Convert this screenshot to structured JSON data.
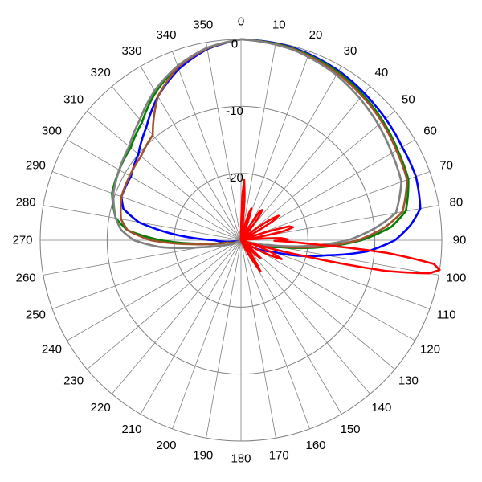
{
  "chart_data": {
    "type": "polar-line",
    "title": "",
    "angle_unit": "deg",
    "angle_direction": "clockwise",
    "zero_at": "top",
    "angle_tick_labels": [
      "0",
      "10",
      "20",
      "30",
      "40",
      "50",
      "60",
      "70",
      "80",
      "90",
      "100",
      "110",
      "120",
      "130",
      "140",
      "150",
      "160",
      "170",
      "180",
      "190",
      "200",
      "210",
      "220",
      "230",
      "240",
      "250",
      "260",
      "270",
      "280",
      "290",
      "300",
      "310",
      "320",
      "330",
      "340",
      "350"
    ],
    "radial_range_db": [
      -30,
      0
    ],
    "radial_tick_values": [
      0,
      -10,
      -20
    ],
    "radial_tick_labels": [
      "0",
      "-10",
      "-20"
    ],
    "grid": true,
    "legend": "none",
    "series": [
      {
        "color": "#0000ff",
        "points": [
          [
            0,
            0
          ],
          [
            15,
            -0.2
          ],
          [
            30,
            -0.8
          ],
          [
            45,
            -1.6
          ],
          [
            60,
            -2.2
          ],
          [
            70,
            -2.2
          ],
          [
            80,
            -2.8
          ],
          [
            85,
            -4.6
          ],
          [
            90,
            -7
          ],
          [
            95,
            -11
          ],
          [
            100,
            -17
          ],
          [
            110,
            -25
          ],
          [
            125,
            -29
          ],
          [
            180,
            -30
          ],
          [
            240,
            -30
          ],
          [
            260,
            -29
          ],
          [
            270,
            -26
          ],
          [
            275,
            -20
          ],
          [
            280,
            -14.5
          ],
          [
            285,
            -11.8
          ],
          [
            290,
            -11
          ],
          [
            300,
            -11
          ],
          [
            310,
            -10
          ],
          [
            320,
            -8
          ],
          [
            330,
            -5.2
          ],
          [
            340,
            -2.8
          ],
          [
            350,
            -1
          ],
          [
            360,
            0
          ]
        ]
      },
      {
        "color": "#008000",
        "points": [
          [
            0,
            0
          ],
          [
            15,
            -0.3
          ],
          [
            30,
            -1
          ],
          [
            45,
            -2
          ],
          [
            60,
            -3
          ],
          [
            70,
            -3.4
          ],
          [
            80,
            -5
          ],
          [
            85,
            -7.5
          ],
          [
            90,
            -12
          ],
          [
            95,
            -18
          ],
          [
            100,
            -24
          ],
          [
            110,
            -29
          ],
          [
            180,
            -30
          ],
          [
            240,
            -30
          ],
          [
            260,
            -28
          ],
          [
            265,
            -24
          ],
          [
            270,
            -18
          ],
          [
            275,
            -13
          ],
          [
            280,
            -11
          ],
          [
            290,
            -9.5
          ],
          [
            300,
            -9
          ],
          [
            310,
            -8.5
          ],
          [
            320,
            -7
          ],
          [
            330,
            -4.5
          ],
          [
            340,
            -2.4
          ],
          [
            350,
            -0.9
          ],
          [
            360,
            0
          ]
        ]
      },
      {
        "color": "#a0522d",
        "points": [
          [
            0,
            0
          ],
          [
            15,
            -0.4
          ],
          [
            30,
            -1.2
          ],
          [
            45,
            -2.2
          ],
          [
            60,
            -3.2
          ],
          [
            70,
            -3.6
          ],
          [
            80,
            -5.5
          ],
          [
            85,
            -8.5
          ],
          [
            90,
            -12.5
          ],
          [
            95,
            -18.5
          ],
          [
            100,
            -25
          ],
          [
            110,
            -29
          ],
          [
            180,
            -30
          ],
          [
            240,
            -30
          ],
          [
            260,
            -28
          ],
          [
            265,
            -23
          ],
          [
            270,
            -16.5
          ],
          [
            275,
            -13
          ],
          [
            280,
            -11.8
          ],
          [
            290,
            -11
          ],
          [
            300,
            -10.8
          ],
          [
            310,
            -10.5
          ],
          [
            320,
            -9.5
          ],
          [
            330,
            -5.2
          ],
          [
            340,
            -2.5
          ],
          [
            350,
            -0.9
          ],
          [
            360,
            0
          ]
        ]
      },
      {
        "color": "#808080",
        "points": [
          [
            0,
            0
          ],
          [
            15,
            -0.5
          ],
          [
            30,
            -1.5
          ],
          [
            45,
            -2.8
          ],
          [
            60,
            -4
          ],
          [
            70,
            -4.5
          ],
          [
            80,
            -6.5
          ],
          [
            85,
            -10
          ],
          [
            90,
            -14
          ],
          [
            95,
            -20
          ],
          [
            100,
            -26
          ],
          [
            110,
            -29
          ],
          [
            180,
            -30
          ],
          [
            240,
            -30
          ],
          [
            255,
            -27
          ],
          [
            260,
            -24
          ],
          [
            265,
            -18
          ],
          [
            270,
            -14
          ],
          [
            275,
            -12
          ],
          [
            280,
            -11
          ],
          [
            290,
            -9.7
          ],
          [
            300,
            -9
          ],
          [
            310,
            -8.2
          ],
          [
            320,
            -6.5
          ],
          [
            330,
            -4.2
          ],
          [
            340,
            -2.3
          ],
          [
            350,
            -0.8
          ],
          [
            360,
            0
          ]
        ]
      },
      {
        "color": "#ff0000",
        "points": [
          [
            0,
            -30
          ],
          [
            2,
            -23
          ],
          [
            3,
            -21
          ],
          [
            5,
            -24
          ],
          [
            7,
            -30
          ],
          [
            12,
            -30
          ],
          [
            16,
            -26
          ],
          [
            18,
            -25
          ],
          [
            20,
            -26.5
          ],
          [
            23,
            -30
          ],
          [
            29,
            -30
          ],
          [
            33,
            -25
          ],
          [
            35,
            -24.5
          ],
          [
            37,
            -25.5
          ],
          [
            42,
            -30
          ],
          [
            50,
            -30
          ],
          [
            55,
            -24.5
          ],
          [
            57,
            -23.3
          ],
          [
            59,
            -24.5
          ],
          [
            63,
            -30
          ],
          [
            70,
            -30
          ],
          [
            74,
            -22.5
          ],
          [
            76,
            -22
          ],
          [
            78,
            -23.5
          ],
          [
            81,
            -30
          ],
          [
            84,
            -30
          ],
          [
            87,
            -24
          ],
          [
            89,
            -23
          ],
          [
            91,
            -25
          ],
          [
            93,
            -20
          ],
          [
            95,
            -8
          ],
          [
            97,
            -1
          ],
          [
            98.5,
            0
          ],
          [
            100,
            -1.5
          ],
          [
            102,
            -8
          ],
          [
            104,
            -20
          ],
          [
            107,
            -30
          ],
          [
            112,
            -25
          ],
          [
            115,
            -23.3
          ],
          [
            118,
            -25.5
          ],
          [
            122,
            -30
          ],
          [
            130,
            -28
          ],
          [
            133,
            -26
          ],
          [
            136,
            -28
          ],
          [
            140,
            -30
          ],
          [
            145,
            -27
          ],
          [
            148,
            -24.5
          ],
          [
            151,
            -27
          ],
          [
            155,
            -30
          ],
          [
            360,
            -30
          ]
        ]
      }
    ]
  }
}
